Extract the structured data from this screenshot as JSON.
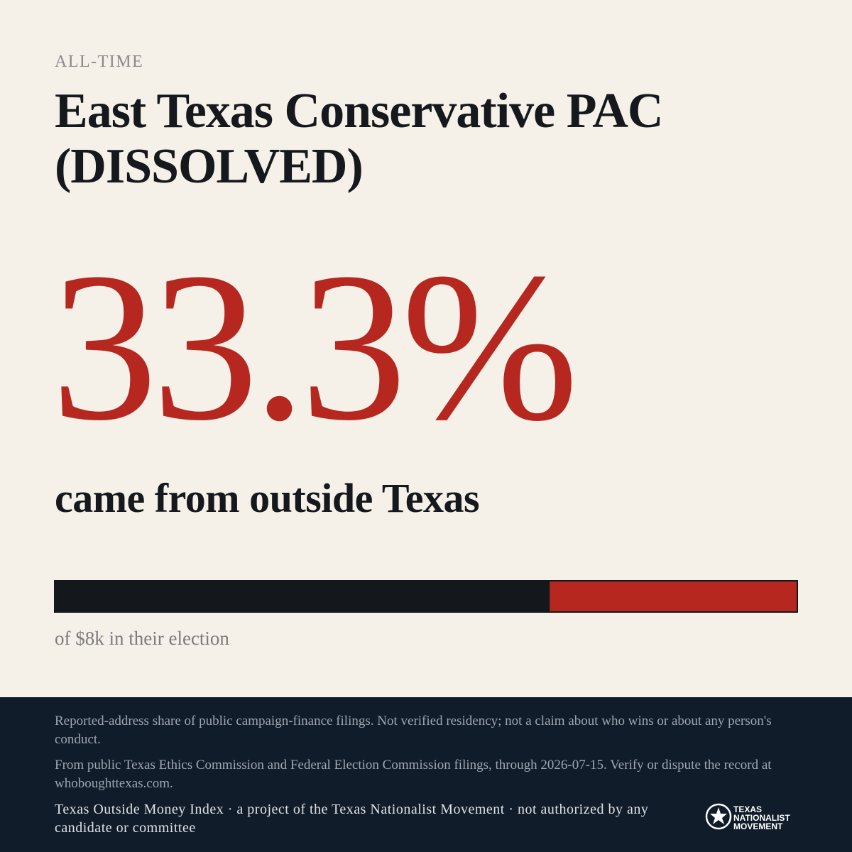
{
  "eyebrow": "ALL-TIME",
  "title": "East Texas Conservative PAC (DISSOLVED)",
  "stat": {
    "value": 33.3,
    "label": "33.3%"
  },
  "scale": [
    0,
    100
  ],
  "subtitle": "came from outside Texas",
  "total": "of $8k in their election",
  "footer": {
    "note": "Reported-address share of public campaign-finance filings. Not verified residency; not a claim about who wins or about any person's conduct.",
    "source": "From public Texas Ethics Commission and Federal Election Commission filings, through 2026-07-15. Verify or dispute the record at whoboughttexas.com.",
    "credit": "Texas Outside Money Index · a project of the Texas Nationalist Movement · not authorized by any candidate or committee",
    "logo_lines": [
      "TEXAS",
      "NATIONALIST",
      "MOVEMENT"
    ]
  }
}
